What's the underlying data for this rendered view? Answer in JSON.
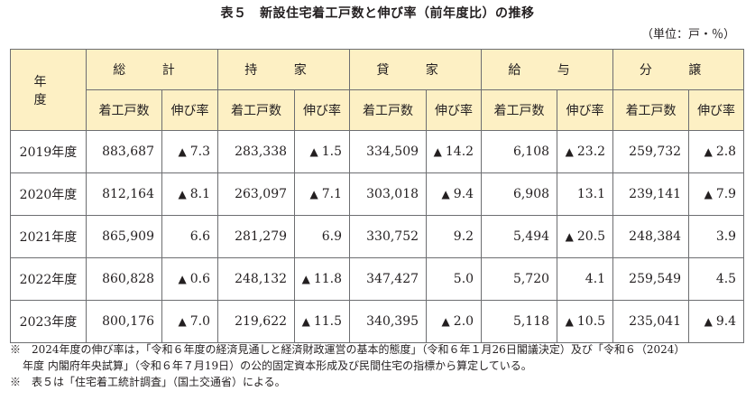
{
  "title": "表５　新設住宅着工戸数と伸び率（前年度比）の推移",
  "unit": "（単位：戸・％）",
  "header": {
    "year": "年 度",
    "groups": [
      "総 計",
      "持 家",
      "貸 家",
      "給 与",
      "分 譲"
    ],
    "sub_count": "着工戸数",
    "sub_rate": "伸び率"
  },
  "rows": [
    {
      "year": "2019年度",
      "cells": [
        [
          "883,687",
          "▲",
          "7.3"
        ],
        [
          "283,338",
          "▲",
          "1.5"
        ],
        [
          "334,509",
          "▲",
          "14.2"
        ],
        [
          "6,108",
          "▲",
          "23.2"
        ],
        [
          "259,732",
          "▲",
          "2.8"
        ]
      ]
    },
    {
      "year": "2020年度",
      "cells": [
        [
          "812,164",
          "▲",
          "8.1"
        ],
        [
          "263,097",
          "▲",
          "7.1"
        ],
        [
          "303,018",
          "▲",
          "9.4"
        ],
        [
          "6,908",
          "",
          "13.1"
        ],
        [
          "239,141",
          "▲",
          "7.9"
        ]
      ]
    },
    {
      "year": "2021年度",
      "cells": [
        [
          "865,909",
          "",
          "6.6"
        ],
        [
          "281,279",
          "",
          "6.9"
        ],
        [
          "330,752",
          "",
          "9.2"
        ],
        [
          "5,494",
          "▲",
          "20.5"
        ],
        [
          "248,384",
          "",
          "3.9"
        ]
      ]
    },
    {
      "year": "2022年度",
      "cells": [
        [
          "860,828",
          "▲",
          "0.6"
        ],
        [
          "248,132",
          "▲",
          "11.8"
        ],
        [
          "347,427",
          "",
          "5.0"
        ],
        [
          "5,720",
          "",
          "4.1"
        ],
        [
          "259,549",
          "",
          "4.5"
        ]
      ]
    },
    {
      "year": "2023年度",
      "cells": [
        [
          "800,176",
          "▲",
          "7.0"
        ],
        [
          "219,622",
          "▲",
          "11.5"
        ],
        [
          "340,395",
          "▲",
          "2.0"
        ],
        [
          "5,118",
          "▲",
          "10.5"
        ],
        [
          "235,041",
          "▲",
          "9.4"
        ]
      ]
    }
  ],
  "notes": {
    "line1": "※　2024年度の伸び率は，「令和６年度の経済見通しと経済財政運営の基本的態度」（令和６年１月26日閣議決定）及び「令和６（2024）",
    "line2": "年度 内閣府年央試算」（令和６年７月19日）の公的固定資本形成及び民間住宅の指標から算定している。",
    "line3": "※　表５は「住宅着工統計調査」（国土交通省）による。"
  }
}
